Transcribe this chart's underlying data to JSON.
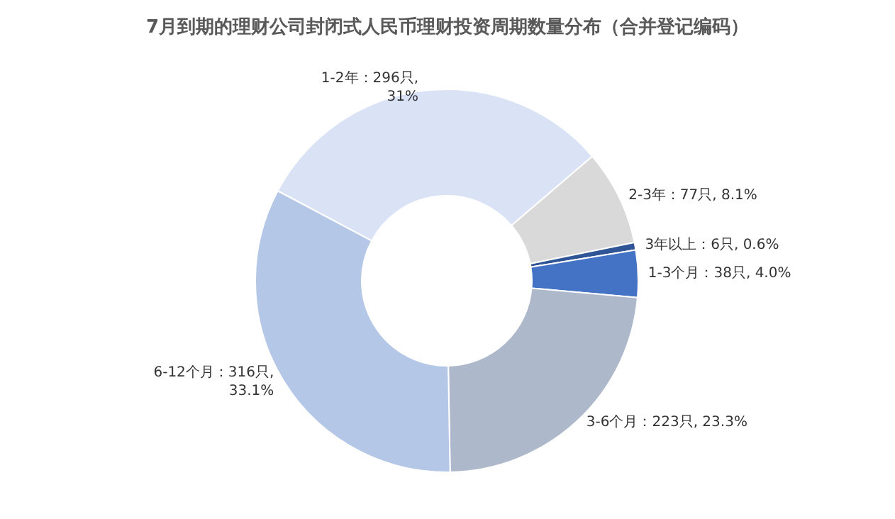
{
  "chart_data": {
    "type": "donut",
    "title": "7月到期的理财公司封闭式人民币理财投资周期数量分布（合并登记编码）",
    "categories": [
      "1-2年",
      "2-3年",
      "3年以上",
      "1-3个月",
      "3-6个月",
      "6-12个月"
    ],
    "values": [
      296,
      77,
      6,
      38,
      223,
      316
    ],
    "colors": [
      "#dae3f5",
      "#d9d9d9",
      "#2f5597",
      "#4472c4",
      "#adb9ca",
      "#b4c7e7"
    ],
    "value_labels": [
      "：296只,\n31%",
      "：77只, 8.1%",
      "：6只, 0.6%",
      "：38只, 4.0%",
      "：223只, 23.3%",
      "：316只,\n33.1%"
    ],
    "legend": false
  }
}
